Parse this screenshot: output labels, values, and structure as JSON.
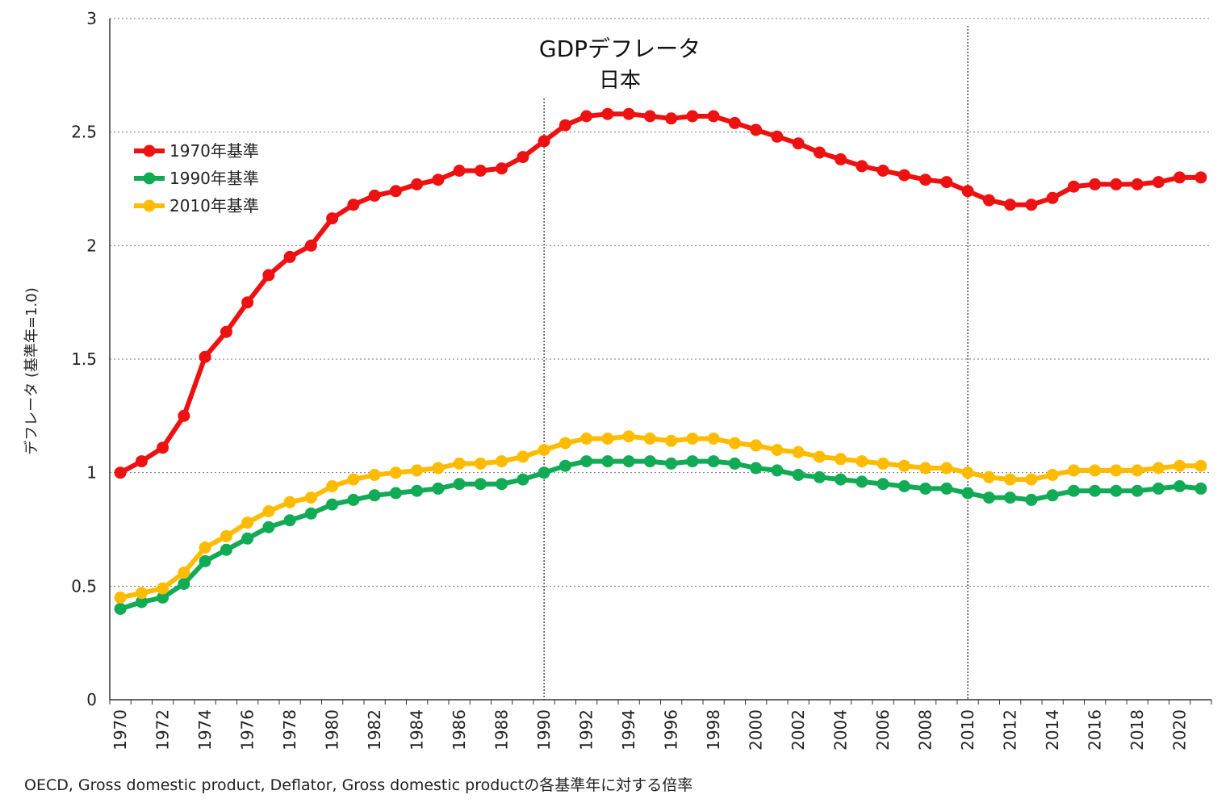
{
  "chart_data": {
    "type": "line",
    "title": "GDPデフレータ",
    "subtitle": "日本",
    "xlabel": "",
    "ylabel": "デフレータ (基準年=1.0)",
    "ylim": [
      0,
      3
    ],
    "yticks": [
      "0",
      "0.5",
      "1",
      "1.5",
      "2",
      "2.5",
      "3"
    ],
    "xlim": [
      1970,
      2021
    ],
    "xtick_labels": [
      "1970",
      "1972",
      "1974",
      "1976",
      "1978",
      "1980",
      "1982",
      "1984",
      "1986",
      "1988",
      "1990",
      "1992",
      "1994",
      "1996",
      "1998",
      "2000",
      "2002",
      "2004",
      "2006",
      "2008",
      "2010",
      "2012",
      "2014",
      "2016",
      "2018",
      "2020"
    ],
    "grid": true,
    "legend_position": "top-left",
    "reference_lines_x": [
      1990,
      2010
    ],
    "x": [
      1970,
      1971,
      1972,
      1973,
      1974,
      1975,
      1976,
      1977,
      1978,
      1979,
      1980,
      1981,
      1982,
      1983,
      1984,
      1985,
      1986,
      1987,
      1988,
      1989,
      1990,
      1991,
      1992,
      1993,
      1994,
      1995,
      1996,
      1997,
      1998,
      1999,
      2000,
      2001,
      2002,
      2003,
      2004,
      2005,
      2006,
      2007,
      2008,
      2009,
      2010,
      2011,
      2012,
      2013,
      2014,
      2015,
      2016,
      2017,
      2018,
      2019,
      2020,
      2021
    ],
    "series": [
      {
        "name": "1970年基準",
        "color": "#ee1111",
        "values": [
          1.0,
          1.05,
          1.11,
          1.25,
          1.51,
          1.62,
          1.75,
          1.87,
          1.95,
          2.0,
          2.12,
          2.18,
          2.22,
          2.24,
          2.27,
          2.29,
          2.33,
          2.33,
          2.34,
          2.39,
          2.46,
          2.53,
          2.57,
          2.58,
          2.58,
          2.57,
          2.56,
          2.57,
          2.57,
          2.54,
          2.51,
          2.48,
          2.45,
          2.41,
          2.38,
          2.35,
          2.33,
          2.31,
          2.29,
          2.28,
          2.24,
          2.2,
          2.18,
          2.18,
          2.21,
          2.26,
          2.27,
          2.27,
          2.27,
          2.28,
          2.3,
          2.3
        ]
      },
      {
        "name": "1990年基準",
        "color": "#11aa55",
        "values": [
          0.4,
          0.43,
          0.45,
          0.51,
          0.61,
          0.66,
          0.71,
          0.76,
          0.79,
          0.82,
          0.86,
          0.88,
          0.9,
          0.91,
          0.92,
          0.93,
          0.95,
          0.95,
          0.95,
          0.97,
          1.0,
          1.03,
          1.05,
          1.05,
          1.05,
          1.05,
          1.04,
          1.05,
          1.05,
          1.04,
          1.02,
          1.01,
          0.99,
          0.98,
          0.97,
          0.96,
          0.95,
          0.94,
          0.93,
          0.93,
          0.91,
          0.89,
          0.89,
          0.88,
          0.9,
          0.92,
          0.92,
          0.92,
          0.92,
          0.93,
          0.94,
          0.93
        ]
      },
      {
        "name": "2010年基準",
        "color": "#ffbb00",
        "values": [
          0.45,
          0.47,
          0.49,
          0.56,
          0.67,
          0.72,
          0.78,
          0.83,
          0.87,
          0.89,
          0.94,
          0.97,
          0.99,
          1.0,
          1.01,
          1.02,
          1.04,
          1.04,
          1.05,
          1.07,
          1.1,
          1.13,
          1.15,
          1.15,
          1.16,
          1.15,
          1.14,
          1.15,
          1.15,
          1.13,
          1.12,
          1.1,
          1.09,
          1.07,
          1.06,
          1.05,
          1.04,
          1.03,
          1.02,
          1.02,
          1.0,
          0.98,
          0.97,
          0.97,
          0.99,
          1.01,
          1.01,
          1.01,
          1.01,
          1.02,
          1.03,
          1.03
        ]
      }
    ]
  },
  "caption": "OECD, Gross domestic product, Deflator, Gross domestic productの各基準年に対する倍率"
}
